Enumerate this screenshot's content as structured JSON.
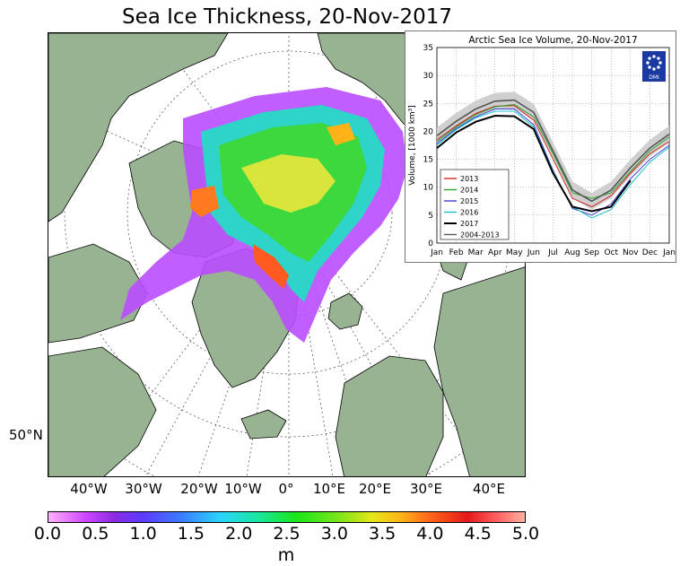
{
  "title": "Sea Ice Thickness, 20-Nov-2017",
  "map": {
    "lat_label": "50°N",
    "lon_labels": [
      "40°W",
      "30°W",
      "20°W",
      "10°W",
      "0°",
      "10°E",
      "20°E",
      "30°E",
      "40°E"
    ],
    "colors": {
      "land": "#98b391",
      "ocean": "#ffffff",
      "coast": "#000000"
    }
  },
  "colorbar": {
    "ticks": [
      "0.0",
      "0.5",
      "1.0",
      "1.5",
      "2.0",
      "2.5",
      "3.0",
      "3.5",
      "4.0",
      "4.5",
      "5.0"
    ],
    "unit": "m"
  },
  "chart_data": {
    "type": "line",
    "title": "Arctic Sea Ice Volume, 20-Nov-2017",
    "ylabel": "Volume, [1000 km³]",
    "xlabel": "",
    "categories": [
      "Jan",
      "Feb",
      "Mar",
      "Apr",
      "May",
      "Jun",
      "Jul",
      "Aug",
      "Sep",
      "Oct",
      "Nov",
      "Dec",
      "Jan"
    ],
    "ylim": [
      0,
      35
    ],
    "yticks": [
      "0",
      "5",
      "10",
      "15",
      "20",
      "25",
      "30",
      "35"
    ],
    "grid": true,
    "legend_position": "lower-left",
    "logo_text": "DMI",
    "series": [
      {
        "name": "2013",
        "color": "#d62728",
        "values": [
          18.5,
          21,
          23.2,
          24.5,
          24.6,
          22,
          15,
          8,
          6.5,
          8.5,
          12.5,
          16,
          18.2
        ]
      },
      {
        "name": "2014",
        "color": "#2ca02c",
        "values": [
          18.2,
          20.8,
          23,
          24.4,
          24.8,
          22.6,
          16,
          9,
          8,
          9,
          12.8,
          16.5,
          19
        ]
      },
      {
        "name": "2015",
        "color": "#3b3bd6",
        "values": [
          17.8,
          20.5,
          22.6,
          24,
          24,
          21.2,
          13,
          6.2,
          5,
          7,
          11.5,
          15,
          17.5
        ]
      },
      {
        "name": "2016",
        "color": "#17c0c0",
        "values": [
          17.5,
          20.3,
          22.4,
          23.6,
          23.6,
          20.8,
          12.8,
          6.5,
          4.5,
          6,
          10.5,
          14.5,
          17.2
        ]
      },
      {
        "name": "2017",
        "color": "#000000",
        "values": [
          17,
          19.8,
          21.7,
          22.8,
          22.7,
          20.4,
          12.5,
          6.5,
          5.7,
          6.5,
          11.2,
          null,
          null
        ]
      },
      {
        "name": "2004-2013",
        "color": "#555555",
        "values": [
          19.2,
          21.8,
          24,
          25.4,
          25.6,
          23.4,
          16.5,
          9.5,
          7.5,
          9.5,
          13.5,
          17,
          19.5
        ]
      }
    ]
  }
}
